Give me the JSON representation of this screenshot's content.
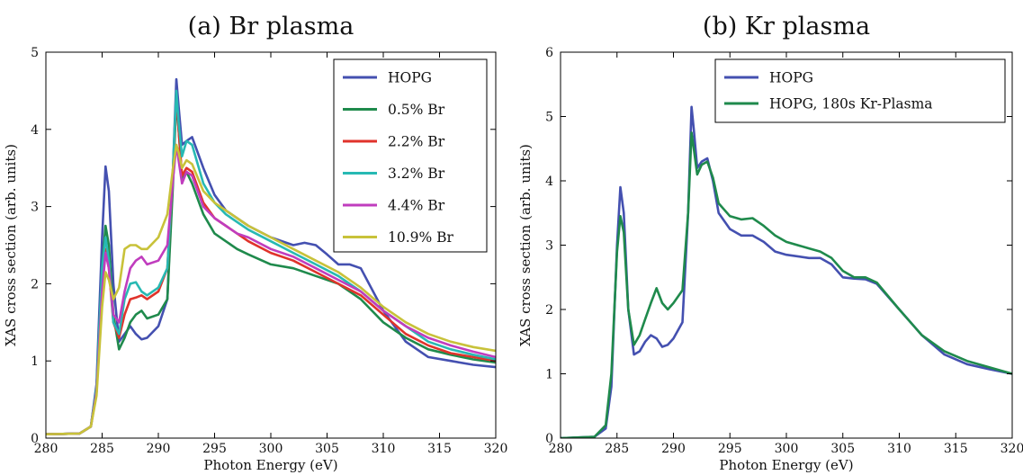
{
  "chart_data": [
    {
      "type": "line",
      "title": "(a) Br plasma",
      "xlabel": "Photon Energy (eV)",
      "ylabel": "XAS cross section (arb. units)",
      "xlim": [
        280,
        320
      ],
      "ylim": [
        0,
        5
      ],
      "x_ticks": [
        "280",
        "285",
        "290",
        "295",
        "300",
        "305",
        "310",
        "315",
        "320"
      ],
      "y_ticks": [
        "0",
        "1",
        "2",
        "3",
        "4",
        "5"
      ],
      "legend_position": "top-right",
      "grid": false,
      "series": [
        {
          "name": "HOPG",
          "color": "#4450b0",
          "x": [
            280,
            283,
            284,
            284.5,
            285,
            285.3,
            285.6,
            286,
            286.5,
            287,
            287.5,
            288,
            288.5,
            289,
            290,
            290.8,
            291.3,
            291.6,
            291.8,
            292.1,
            292.5,
            293,
            294,
            295,
            296,
            297,
            298,
            300,
            302,
            303,
            304,
            305,
            306,
            307,
            308,
            310,
            312,
            314,
            316,
            318,
            320
          ],
          "y": [
            0.05,
            0.06,
            0.15,
            0.7,
            2.6,
            3.52,
            3.2,
            2.0,
            1.25,
            1.35,
            1.45,
            1.35,
            1.28,
            1.3,
            1.45,
            1.8,
            3.5,
            4.65,
            4.3,
            3.8,
            3.85,
            3.9,
            3.5,
            3.15,
            2.95,
            2.85,
            2.75,
            2.6,
            2.5,
            2.53,
            2.5,
            2.38,
            2.25,
            2.25,
            2.2,
            1.65,
            1.25,
            1.05,
            1.0,
            0.95,
            0.92
          ]
        },
        {
          "name": "0.5% Br",
          "color": "#1f8a4c",
          "x": [
            280,
            283,
            284,
            284.5,
            285,
            285.3,
            285.6,
            286,
            286.5,
            287,
            287.5,
            288,
            288.5,
            289,
            290,
            290.8,
            291.3,
            291.6,
            291.8,
            292.1,
            292.5,
            293,
            294,
            295,
            296,
            297,
            298,
            300,
            302,
            304,
            306,
            308,
            310,
            312,
            314,
            316,
            318,
            320
          ],
          "y": [
            0.05,
            0.06,
            0.15,
            0.65,
            2.2,
            2.75,
            2.5,
            1.6,
            1.15,
            1.3,
            1.5,
            1.6,
            1.65,
            1.55,
            1.6,
            1.8,
            3.3,
            4.4,
            4.0,
            3.35,
            3.45,
            3.3,
            2.9,
            2.65,
            2.55,
            2.45,
            2.38,
            2.25,
            2.2,
            2.1,
            2.0,
            1.8,
            1.5,
            1.3,
            1.15,
            1.08,
            1.02,
            0.98
          ]
        },
        {
          "name": "2.2% Br",
          "color": "#e0332b",
          "x": [
            280,
            283,
            284,
            284.5,
            285,
            285.3,
            285.6,
            286,
            286.5,
            287,
            287.5,
            288,
            288.5,
            289,
            290,
            290.8,
            291.3,
            291.6,
            291.8,
            292.1,
            292.5,
            293,
            294,
            295,
            296,
            297,
            298,
            300,
            302,
            304,
            306,
            308,
            310,
            312,
            314,
            316,
            318,
            320
          ],
          "y": [
            0.05,
            0.06,
            0.15,
            0.6,
            2.0,
            2.45,
            2.2,
            1.5,
            1.3,
            1.6,
            1.8,
            1.82,
            1.85,
            1.8,
            1.9,
            2.2,
            3.45,
            4.45,
            4.0,
            3.4,
            3.5,
            3.45,
            3.05,
            2.85,
            2.75,
            2.65,
            2.55,
            2.4,
            2.3,
            2.15,
            2.0,
            1.85,
            1.6,
            1.35,
            1.2,
            1.1,
            1.05,
            1.0
          ]
        },
        {
          "name": "3.2% Br",
          "color": "#27b9b3",
          "x": [
            280,
            283,
            284,
            284.5,
            285,
            285.3,
            285.6,
            286,
            286.5,
            287,
            287.5,
            288,
            288.5,
            289,
            290,
            290.8,
            291.3,
            291.6,
            291.8,
            292.1,
            292.5,
            293,
            294,
            295,
            296,
            297,
            298,
            300,
            302,
            304,
            306,
            308,
            310,
            312,
            314,
            316,
            318,
            320
          ],
          "y": [
            0.05,
            0.06,
            0.15,
            0.65,
            2.2,
            2.6,
            2.3,
            1.5,
            1.35,
            1.8,
            2.0,
            2.02,
            1.9,
            1.85,
            1.95,
            2.2,
            3.5,
            4.5,
            4.1,
            3.65,
            3.85,
            3.8,
            3.3,
            3.05,
            2.9,
            2.8,
            2.7,
            2.55,
            2.4,
            2.25,
            2.1,
            1.9,
            1.65,
            1.45,
            1.25,
            1.15,
            1.08,
            1.02
          ]
        },
        {
          "name": "4.4% Br",
          "color": "#c03dbe",
          "x": [
            280,
            283,
            284,
            284.5,
            285,
            285.3,
            285.6,
            286,
            286.5,
            287,
            287.5,
            288,
            288.5,
            289,
            290,
            290.8,
            291.3,
            291.6,
            291.8,
            292.1,
            292.5,
            293,
            294,
            295,
            296,
            297,
            298,
            300,
            302,
            304,
            306,
            308,
            310,
            312,
            314,
            316,
            318,
            320
          ],
          "y": [
            0.05,
            0.06,
            0.15,
            0.6,
            1.9,
            2.4,
            2.2,
            1.6,
            1.5,
            1.9,
            2.2,
            2.3,
            2.35,
            2.25,
            2.3,
            2.5,
            3.35,
            3.8,
            3.6,
            3.3,
            3.45,
            3.4,
            3.0,
            2.85,
            2.75,
            2.65,
            2.6,
            2.45,
            2.35,
            2.2,
            2.05,
            1.9,
            1.65,
            1.45,
            1.3,
            1.2,
            1.12,
            1.05
          ]
        },
        {
          "name": "10.9% Br",
          "color": "#c8c23a",
          "x": [
            280,
            283,
            284,
            284.5,
            285,
            285.3,
            285.6,
            286,
            286.5,
            287,
            287.5,
            288,
            288.5,
            289,
            290,
            290.8,
            291.3,
            291.6,
            291.8,
            292.1,
            292.5,
            293,
            294,
            295,
            296,
            297,
            298,
            300,
            302,
            304,
            306,
            308,
            310,
            312,
            314,
            316,
            318,
            320
          ],
          "y": [
            0.05,
            0.06,
            0.15,
            0.55,
            1.7,
            2.15,
            2.05,
            1.8,
            1.95,
            2.45,
            2.5,
            2.5,
            2.45,
            2.45,
            2.6,
            2.9,
            3.5,
            3.8,
            3.7,
            3.5,
            3.6,
            3.55,
            3.2,
            3.05,
            2.95,
            2.85,
            2.75,
            2.6,
            2.45,
            2.3,
            2.15,
            1.95,
            1.7,
            1.5,
            1.35,
            1.25,
            1.18,
            1.13
          ]
        }
      ]
    },
    {
      "type": "line",
      "title": "(b) Kr plasma",
      "xlabel": "Photon Energy (eV)",
      "ylabel": "XAS cross section (arb. units)",
      "xlim": [
        280,
        320
      ],
      "ylim": [
        0,
        6
      ],
      "x_ticks": [
        "280",
        "285",
        "290",
        "295",
        "300",
        "305",
        "310",
        "315",
        "320"
      ],
      "y_ticks": [
        "0",
        "1",
        "2",
        "3",
        "4",
        "5",
        "6"
      ],
      "legend_position": "top-right",
      "grid": false,
      "series": [
        {
          "name": "HOPG",
          "color": "#4450b0",
          "x": [
            280,
            283,
            284,
            284.5,
            285,
            285.3,
            285.6,
            286,
            286.5,
            287,
            287.5,
            288,
            288.5,
            289,
            289.5,
            290,
            290.8,
            291.3,
            291.6,
            291.8,
            292.1,
            292.5,
            293,
            293.5,
            294,
            295,
            296,
            297,
            298,
            299,
            300,
            302,
            303,
            304,
            305,
            306,
            307,
            308,
            310,
            312,
            314,
            316,
            318,
            320
          ],
          "y": [
            0,
            0.02,
            0.15,
            0.8,
            3.0,
            3.9,
            3.5,
            2.0,
            1.3,
            1.35,
            1.5,
            1.6,
            1.55,
            1.42,
            1.45,
            1.55,
            1.8,
            3.5,
            5.15,
            4.8,
            4.2,
            4.3,
            4.35,
            4.0,
            3.5,
            3.25,
            3.15,
            3.15,
            3.05,
            2.9,
            2.85,
            2.8,
            2.8,
            2.7,
            2.5,
            2.48,
            2.47,
            2.4,
            2.0,
            1.6,
            1.3,
            1.15,
            1.07,
            1.0
          ]
        },
        {
          "name": "HOPG, 180s Kr-Plasma",
          "color": "#1f8a4c",
          "x": [
            280,
            283,
            284,
            284.5,
            285,
            285.3,
            285.6,
            286,
            286.5,
            287,
            287.5,
            288,
            288.5,
            289,
            289.5,
            290,
            290.8,
            291.3,
            291.6,
            291.8,
            292.1,
            292.5,
            293,
            293.5,
            294,
            295,
            296,
            297,
            298,
            299,
            300,
            302,
            303,
            304,
            305,
            306,
            307,
            308,
            310,
            312,
            314,
            316,
            318,
            320
          ],
          "y": [
            0,
            0.02,
            0.2,
            1.0,
            2.9,
            3.45,
            3.2,
            2.0,
            1.45,
            1.6,
            1.85,
            2.1,
            2.33,
            2.1,
            2.0,
            2.1,
            2.3,
            3.5,
            4.75,
            4.5,
            4.1,
            4.25,
            4.3,
            4.05,
            3.65,
            3.45,
            3.4,
            3.42,
            3.3,
            3.15,
            3.05,
            2.95,
            2.9,
            2.8,
            2.6,
            2.5,
            2.5,
            2.42,
            2.0,
            1.6,
            1.35,
            1.2,
            1.1,
            1.0
          ]
        }
      ]
    }
  ]
}
